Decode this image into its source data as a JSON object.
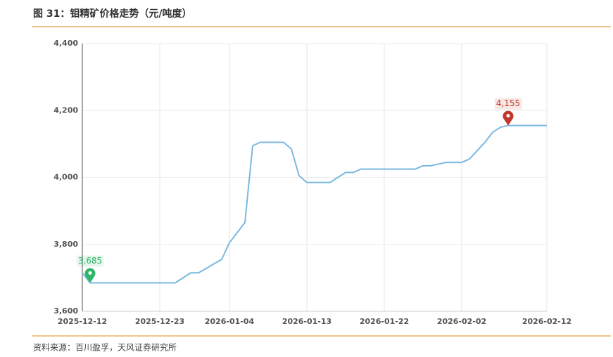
{
  "title": "图 31：钼精矿价格走势（元/吨度）",
  "source": "资料来源：百川盈孚，天风证券研究所",
  "chart_data": {
    "type": "line",
    "categories": [
      "2025-12-12",
      null,
      null,
      null,
      null,
      null,
      null,
      null,
      null,
      null,
      "2025-12-23",
      null,
      null,
      null,
      null,
      null,
      null,
      null,
      null,
      "2026-01-04",
      null,
      null,
      null,
      null,
      null,
      null,
      null,
      null,
      null,
      "2026-01-13",
      null,
      null,
      null,
      null,
      null,
      null,
      null,
      null,
      null,
      "2026-01-22",
      null,
      null,
      null,
      null,
      null,
      null,
      null,
      null,
      null,
      "2026-02-02",
      null,
      null,
      null,
      null,
      null,
      null,
      null,
      null,
      null,
      null,
      "2026-02-12"
    ],
    "series": [
      {
        "color": "#7ab8e0",
        "values": [
          3715,
          3685,
          3685,
          3685,
          3685,
          3685,
          3685,
          3685,
          3685,
          3685,
          3685,
          3685,
          3685,
          3700,
          3715,
          3715,
          3728,
          3742,
          3755,
          3805,
          3835,
          3865,
          4095,
          4105,
          4105,
          4105,
          4105,
          4085,
          4005,
          3985,
          3985,
          3985,
          3985,
          4000,
          4015,
          4015,
          4025,
          4025,
          4025,
          4025,
          4025,
          4025,
          4025,
          4025,
          4035,
          4035,
          4040,
          4045,
          4045,
          4045,
          4055,
          4080,
          4105,
          4135,
          4150,
          4155,
          4155,
          4155,
          4155,
          4155,
          4155
        ]
      }
    ],
    "ylim": [
      3600,
      4400
    ],
    "yticks": [
      {
        "value": 3600,
        "label": "3,600"
      },
      {
        "value": 3800,
        "label": "3,800"
      },
      {
        "value": 4000,
        "label": "4,000"
      },
      {
        "value": 4200,
        "label": "4,200"
      },
      {
        "value": 4400,
        "label": "4,400"
      }
    ],
    "grid": true,
    "annotations": [
      {
        "value": 3685,
        "label": "3,685",
        "color": "#2fb56a"
      },
      {
        "value": 4155,
        "label": "4,155",
        "color": "#c0392b"
      }
    ]
  }
}
